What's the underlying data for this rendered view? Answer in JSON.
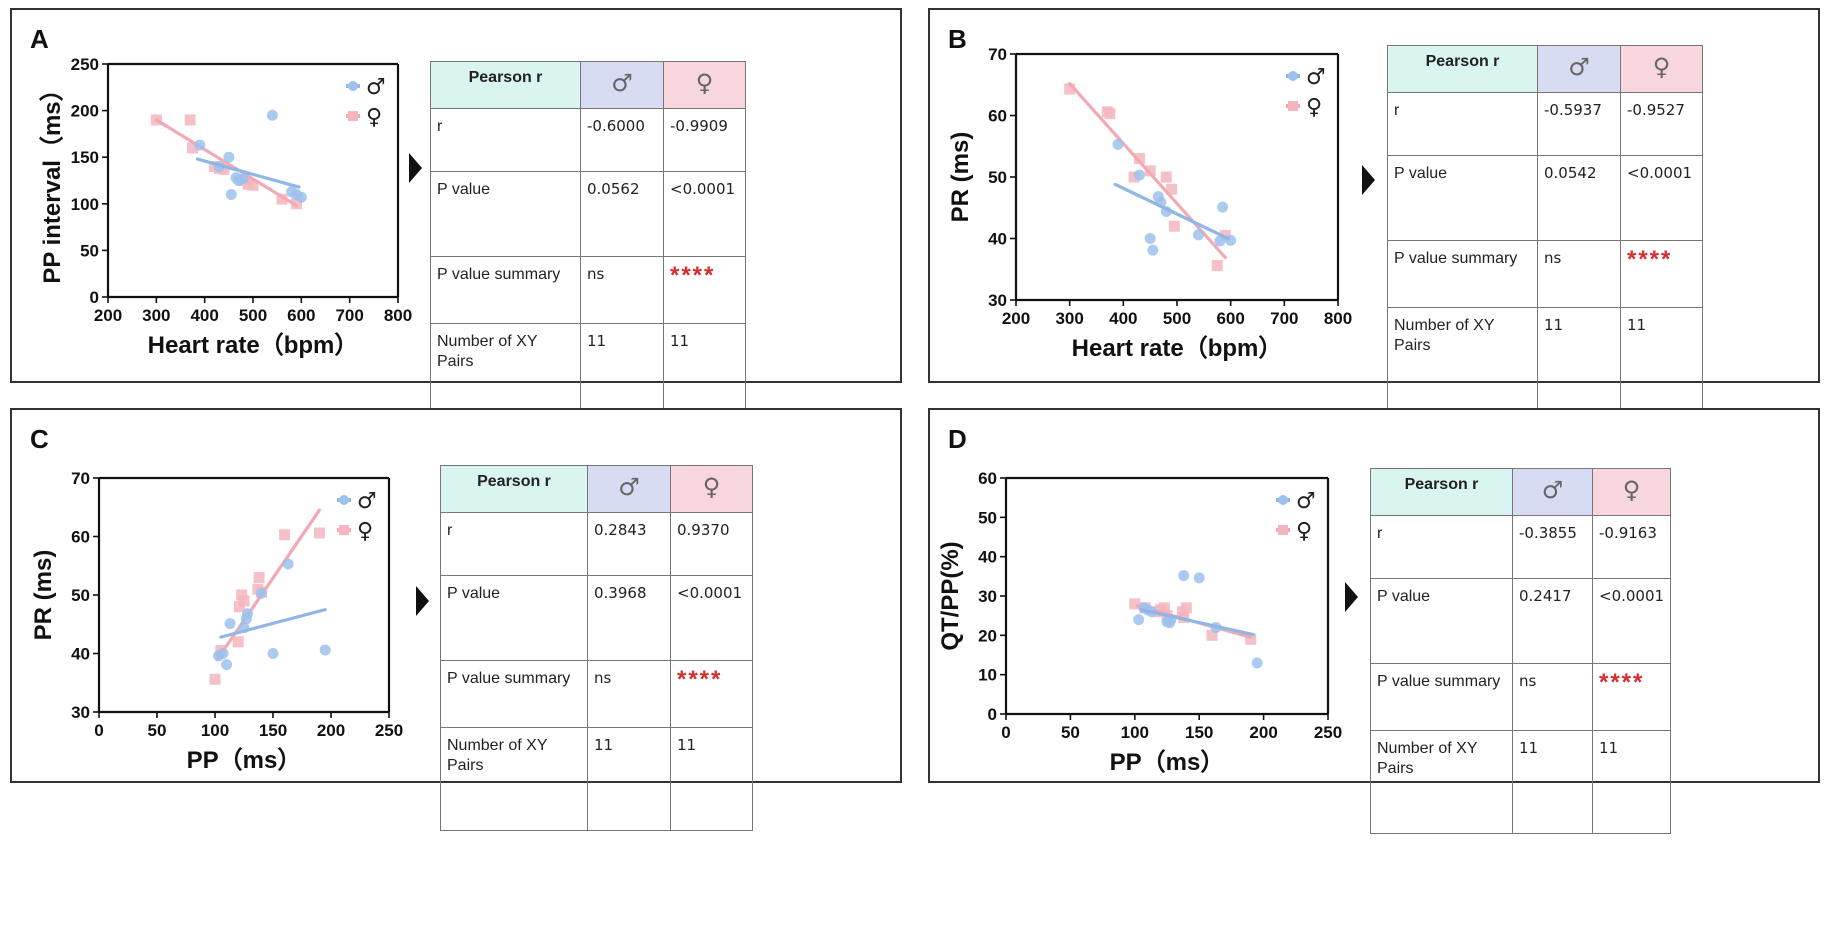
{
  "legend": {
    "male_symbol": "♂",
    "female_symbol": "♀"
  },
  "colors": {
    "male": "#9cc1ec",
    "female": "#f5b5be",
    "male_line": "#8fb6e6",
    "female_line": "#f2a9b2",
    "stars": "#d32f2f"
  },
  "table_template": {
    "header_label": "Pearson r",
    "row_labels": [
      "r",
      "P value",
      "P value summary",
      "Number of XY Pairs"
    ]
  },
  "panels": [
    {
      "letter": "A",
      "stats": {
        "male": {
          "r": "-0.6000",
          "p": "0.0562",
          "summary": "ns",
          "pairs": "11"
        },
        "female": {
          "r": "-0.9909",
          "p": "<0.0001",
          "summary": "****",
          "pairs": "11"
        }
      }
    },
    {
      "letter": "B",
      "stats": {
        "male": {
          "r": "-0.5937",
          "p": "0.0542",
          "summary": "ns",
          "pairs": "11"
        },
        "female": {
          "r": "-0.9527",
          "p": "<0.0001",
          "summary": "****",
          "pairs": "11"
        }
      }
    },
    {
      "letter": "C",
      "stats": {
        "male": {
          "r": "0.2843",
          "p": "0.3968",
          "summary": "ns",
          "pairs": "11"
        },
        "female": {
          "r": "0.9370",
          "p": "<0.0001",
          "summary": "****",
          "pairs": "11"
        }
      }
    },
    {
      "letter": "D",
      "stats": {
        "male": {
          "r": "-0.3855",
          "p": "0.2417",
          "summary": "ns",
          "pairs": "11"
        },
        "female": {
          "r": "-0.9163",
          "p": "<0.0001",
          "summary": "****",
          "pairs": "11"
        }
      }
    }
  ],
  "chart_data": [
    {
      "type": "scatter",
      "title": "",
      "xlabel": "Heart rate（bpm）",
      "ylabel": "PP interval（ms）",
      "xlim": [
        200,
        800
      ],
      "ylim": [
        0,
        250
      ],
      "xticks": [
        200,
        300,
        400,
        500,
        600,
        700,
        800
      ],
      "yticks": [
        0,
        50,
        100,
        150,
        200,
        250
      ],
      "grid": false,
      "legend": "top-right",
      "series": [
        {
          "name": "♂",
          "marker": "circle",
          "points": [
            [
              390,
              163
            ],
            [
              430,
              140
            ],
            [
              450,
              150
            ],
            [
              455,
              110
            ],
            [
              465,
              128
            ],
            [
              470,
              125
            ],
            [
              480,
              127
            ],
            [
              540,
              195
            ],
            [
              580,
              113
            ],
            [
              590,
              110
            ],
            [
              600,
              107
            ]
          ],
          "fit": [
            [
              385,
              148
            ],
            [
              595,
              118
            ]
          ]
        },
        {
          "name": "♀",
          "marker": "square",
          "points": [
            [
              300,
              190
            ],
            [
              370,
              190
            ],
            [
              375,
              160
            ],
            [
              420,
              140
            ],
            [
              430,
              138
            ],
            [
              440,
              137
            ],
            [
              480,
              125
            ],
            [
              490,
              121
            ],
            [
              500,
              120
            ],
            [
              560,
              105
            ],
            [
              590,
              100
            ]
          ],
          "fit": [
            [
              300,
              190
            ],
            [
              590,
              98
            ]
          ]
        }
      ]
    },
    {
      "type": "scatter",
      "title": "",
      "xlabel": "Heart rate（bpm）",
      "ylabel": "PR (ms)",
      "xlim": [
        200,
        800
      ],
      "ylim": [
        30,
        70
      ],
      "xticks": [
        200,
        300,
        400,
        500,
        600,
        700,
        800
      ],
      "yticks": [
        30,
        40,
        50,
        60,
        70
      ],
      "grid": false,
      "legend": "top-right",
      "series": [
        {
          "name": "♂",
          "marker": "circle",
          "points": [
            [
              390,
              55.3
            ],
            [
              430,
              50.3
            ],
            [
              450,
              40
            ],
            [
              455,
              38.1
            ],
            [
              465,
              46.8
            ],
            [
              470,
              45.9
            ],
            [
              480,
              44.4
            ],
            [
              540,
              40.6
            ],
            [
              580,
              39.6
            ],
            [
              585,
              45.1
            ],
            [
              600,
              39.7
            ]
          ],
          "fit": [
            [
              385,
              48.8
            ],
            [
              595,
              40
            ]
          ]
        },
        {
          "name": "♀",
          "marker": "square",
          "points": [
            [
              300,
              64.3
            ],
            [
              370,
              60.6
            ],
            [
              375,
              60.3
            ],
            [
              420,
              50
            ],
            [
              430,
              53
            ],
            [
              450,
              51
            ],
            [
              480,
              50
            ],
            [
              490,
              48
            ],
            [
              495,
              42
            ],
            [
              575,
              35.6
            ],
            [
              590,
              40.5
            ]
          ],
          "fit": [
            [
              300,
              65.2
            ],
            [
              590,
              36.9
            ]
          ]
        }
      ]
    },
    {
      "type": "scatter",
      "title": "",
      "xlabel": "PP（ms）",
      "ylabel": "PR (ms)",
      "xlim": [
        0,
        250
      ],
      "ylim": [
        30,
        70
      ],
      "xticks": [
        0,
        50,
        100,
        150,
        200,
        250
      ],
      "yticks": [
        30,
        40,
        50,
        60,
        70
      ],
      "grid": false,
      "legend": "top-right",
      "series": [
        {
          "name": "♂",
          "marker": "circle",
          "points": [
            [
              103,
              39.6
            ],
            [
              107,
              40
            ],
            [
              110,
              38.1
            ],
            [
              113,
              45.1
            ],
            [
              125,
              44.4
            ],
            [
              127,
              45.9
            ],
            [
              128,
              46.8
            ],
            [
              140,
              50.3
            ],
            [
              150,
              40
            ],
            [
              163,
              55.3
            ],
            [
              195,
              40.6
            ]
          ],
          "fit": [
            [
              105,
              42.8
            ],
            [
              195,
              47.5
            ]
          ]
        },
        {
          "name": "♀",
          "marker": "square",
          "points": [
            [
              100,
              35.6
            ],
            [
              105,
              40.5
            ],
            [
              120,
              42
            ],
            [
              121,
              48
            ],
            [
              123,
              50
            ],
            [
              125,
              49
            ],
            [
              137,
              51
            ],
            [
              138,
              53
            ],
            [
              140,
              50.5
            ],
            [
              160,
              60.3
            ],
            [
              190,
              60.6
            ]
          ],
          "fit": [
            [
              102,
              39
            ],
            [
              190,
              64.5
            ]
          ]
        }
      ]
    },
    {
      "type": "scatter",
      "title": "",
      "xlabel": "PP（ms）",
      "ylabel": "QT/PP(%)",
      "xlim": [
        0,
        250
      ],
      "ylim": [
        0,
        60
      ],
      "xticks": [
        0,
        50,
        100,
        150,
        200,
        250
      ],
      "yticks": [
        0,
        10,
        20,
        30,
        40,
        50,
        60
      ],
      "grid": false,
      "legend": "top-right",
      "series": [
        {
          "name": "♂",
          "marker": "circle",
          "points": [
            [
              103,
              24
            ],
            [
              107,
              27
            ],
            [
              110,
              26.5
            ],
            [
              113,
              26
            ],
            [
              125,
              23.5
            ],
            [
              127,
              23.2
            ],
            [
              128,
              24
            ],
            [
              138,
              35.2
            ],
            [
              150,
              34.6
            ],
            [
              163,
              22
            ],
            [
              195,
              13
            ]
          ],
          "fit": [
            [
              105,
              26.5
            ],
            [
              192,
              20.2
            ]
          ]
        },
        {
          "name": "♀",
          "marker": "square",
          "points": [
            [
              100,
              28
            ],
            [
              108,
              27
            ],
            [
              118,
              26
            ],
            [
              120,
              26.5
            ],
            [
              123,
              27
            ],
            [
              125,
              25
            ],
            [
              137,
              26
            ],
            [
              138,
              24.5
            ],
            [
              140,
              27
            ],
            [
              160,
              20
            ],
            [
              190,
              19
            ]
          ],
          "fit": [
            [
              102,
              27.5
            ],
            [
              190,
              19.5
            ]
          ]
        }
      ]
    }
  ]
}
